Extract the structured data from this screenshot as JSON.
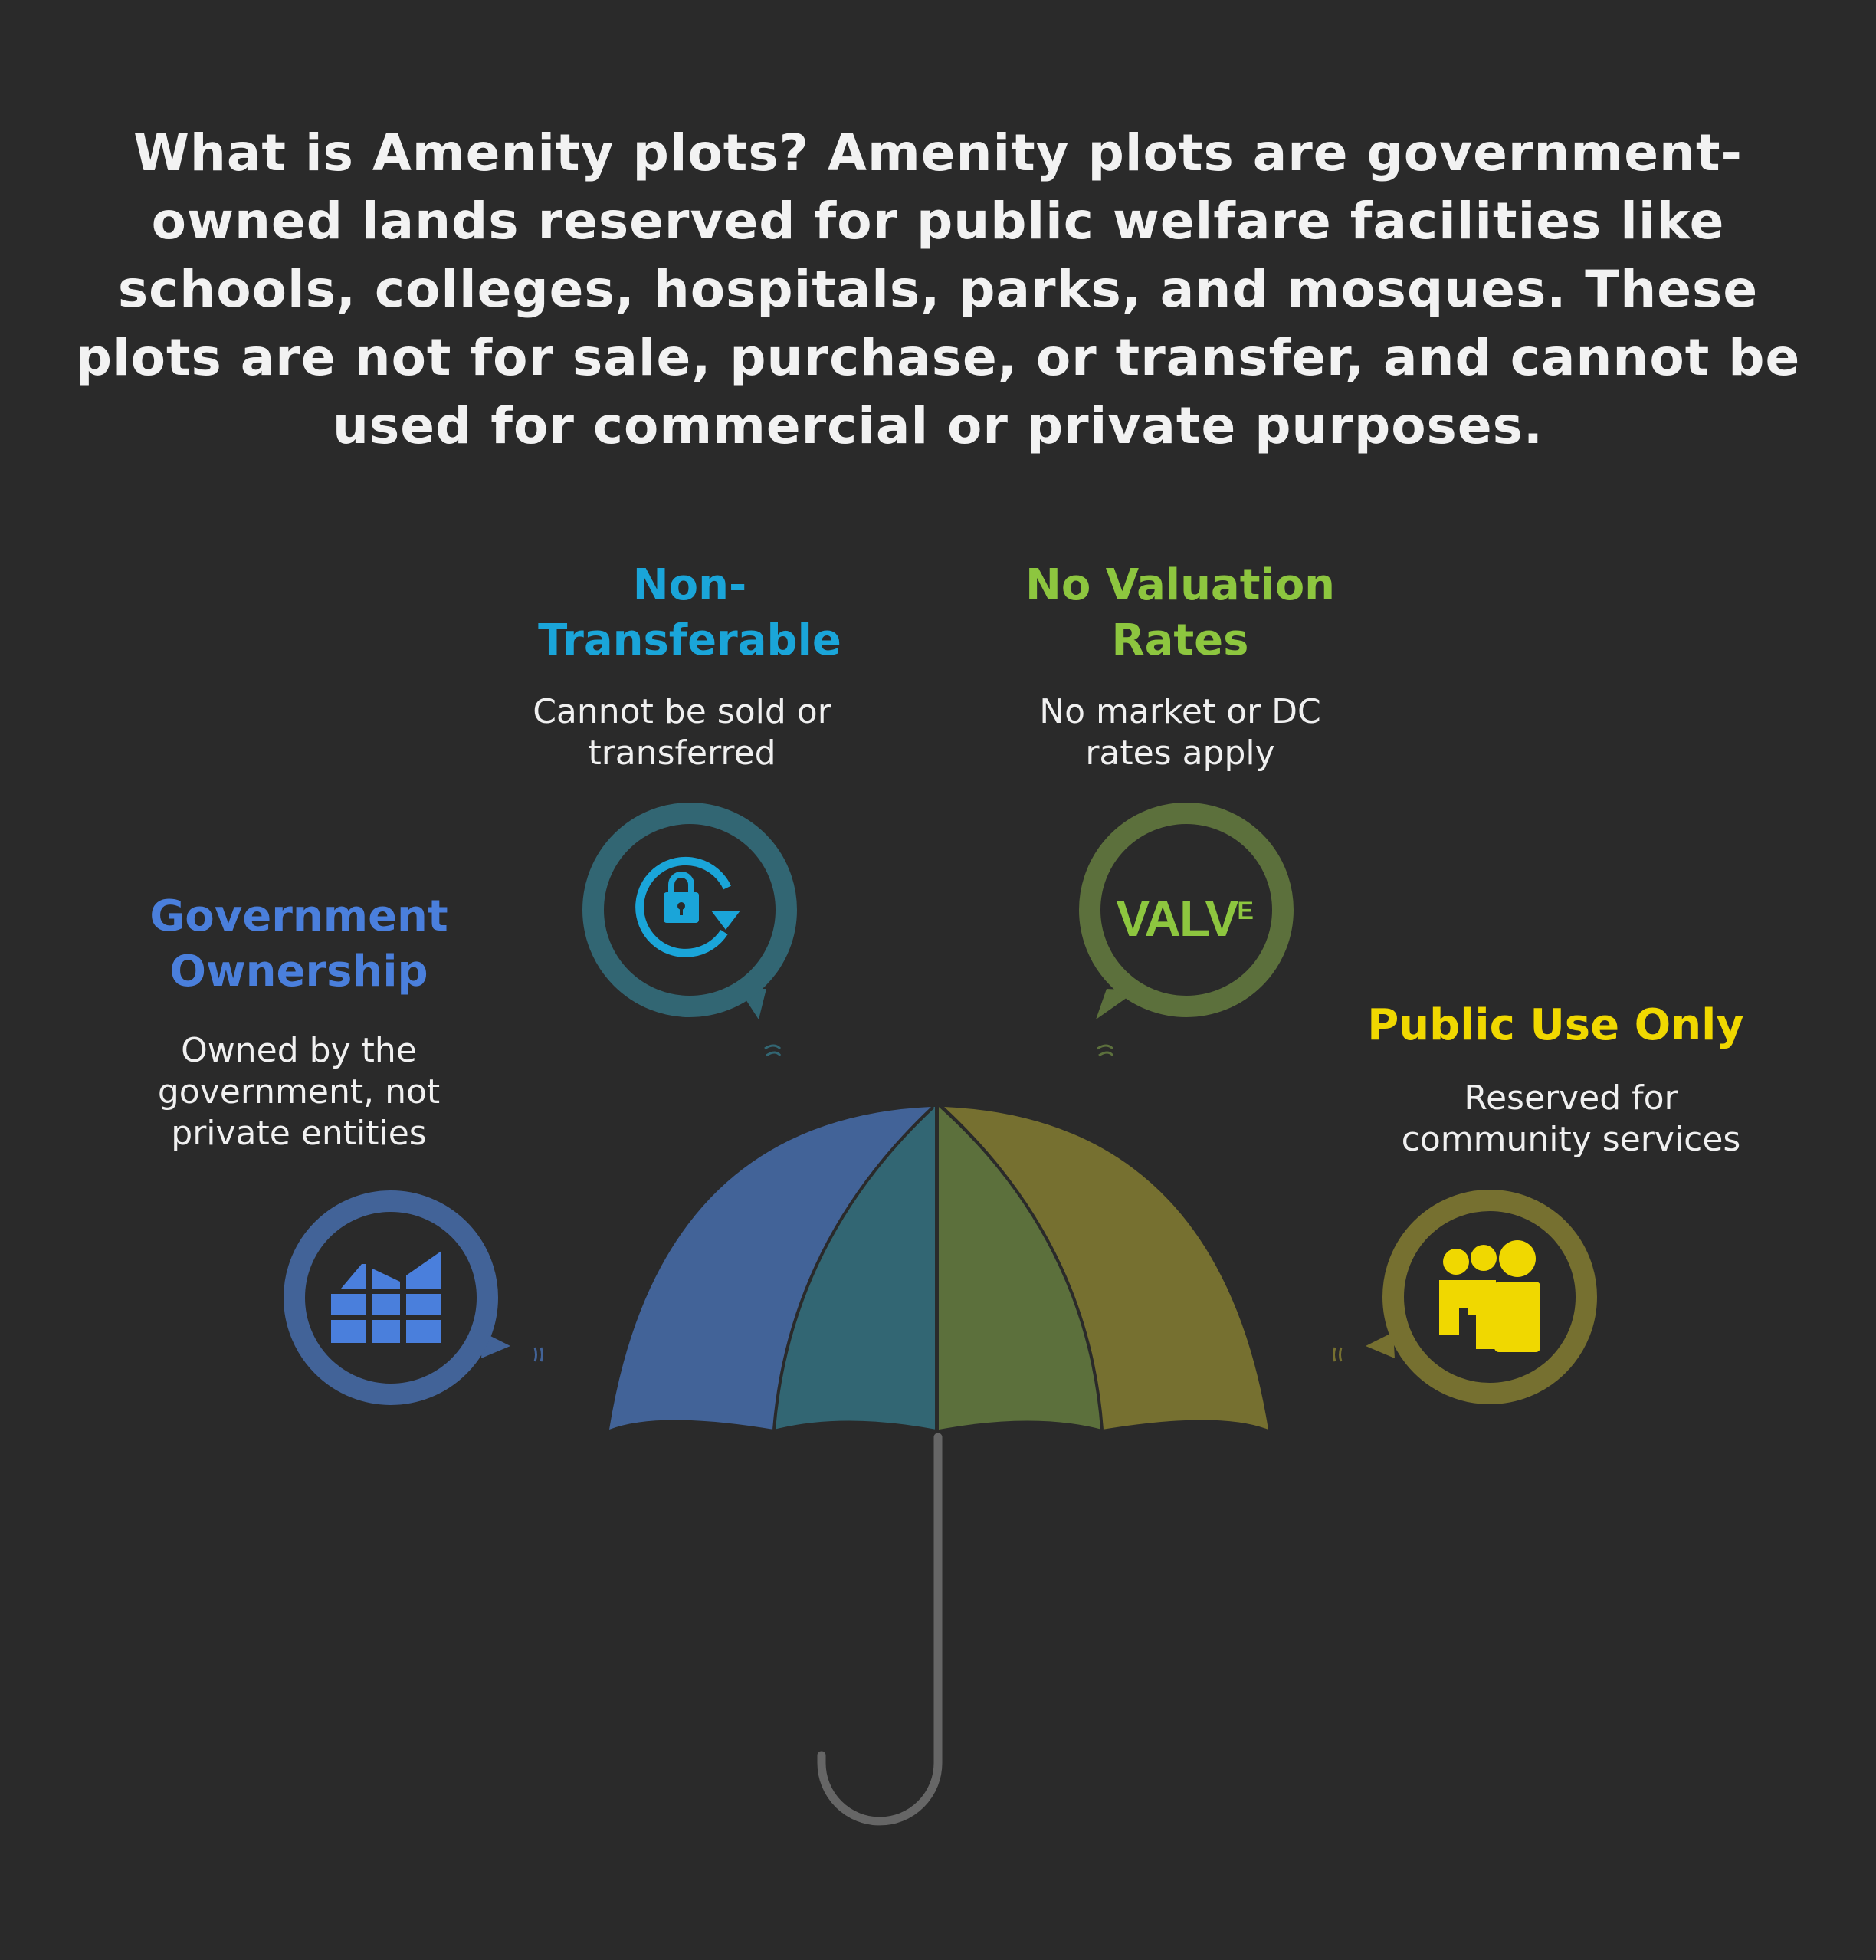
{
  "title": "What is Amenity plots? Amenity plots are government-owned lands reserved for public welfare facilities like schools, colleges, hospitals, parks, and mosques. These plots are not for sale, purchase, or transfer, and cannot be used for commercial or private purposes.",
  "features": [
    {
      "heading": "Government Ownership",
      "description": "Owned by the government, not private entities",
      "color": "#4a7fdc",
      "icon": "building-grid-icon"
    },
    {
      "heading": "Non-Transferable",
      "description": "Cannot be sold or transferred",
      "color": "#1aa5d9",
      "icon": "lock-rotate-icon"
    },
    {
      "heading": "No Valuation Rates",
      "description": "No market or DC rates apply",
      "color": "#8dc63f",
      "icon": "valve-logo-icon",
      "icon_text": "VALV",
      "icon_text_sup": "E"
    },
    {
      "heading": "Public Use Only",
      "description": "Reserved for community services",
      "color": "#f0d800",
      "icon": "group-people-icon"
    }
  ],
  "umbrella": {
    "panel_colors": [
      "#426398",
      "#326673",
      "#5c703c",
      "#767030"
    ],
    "handle_color": "#666666"
  }
}
